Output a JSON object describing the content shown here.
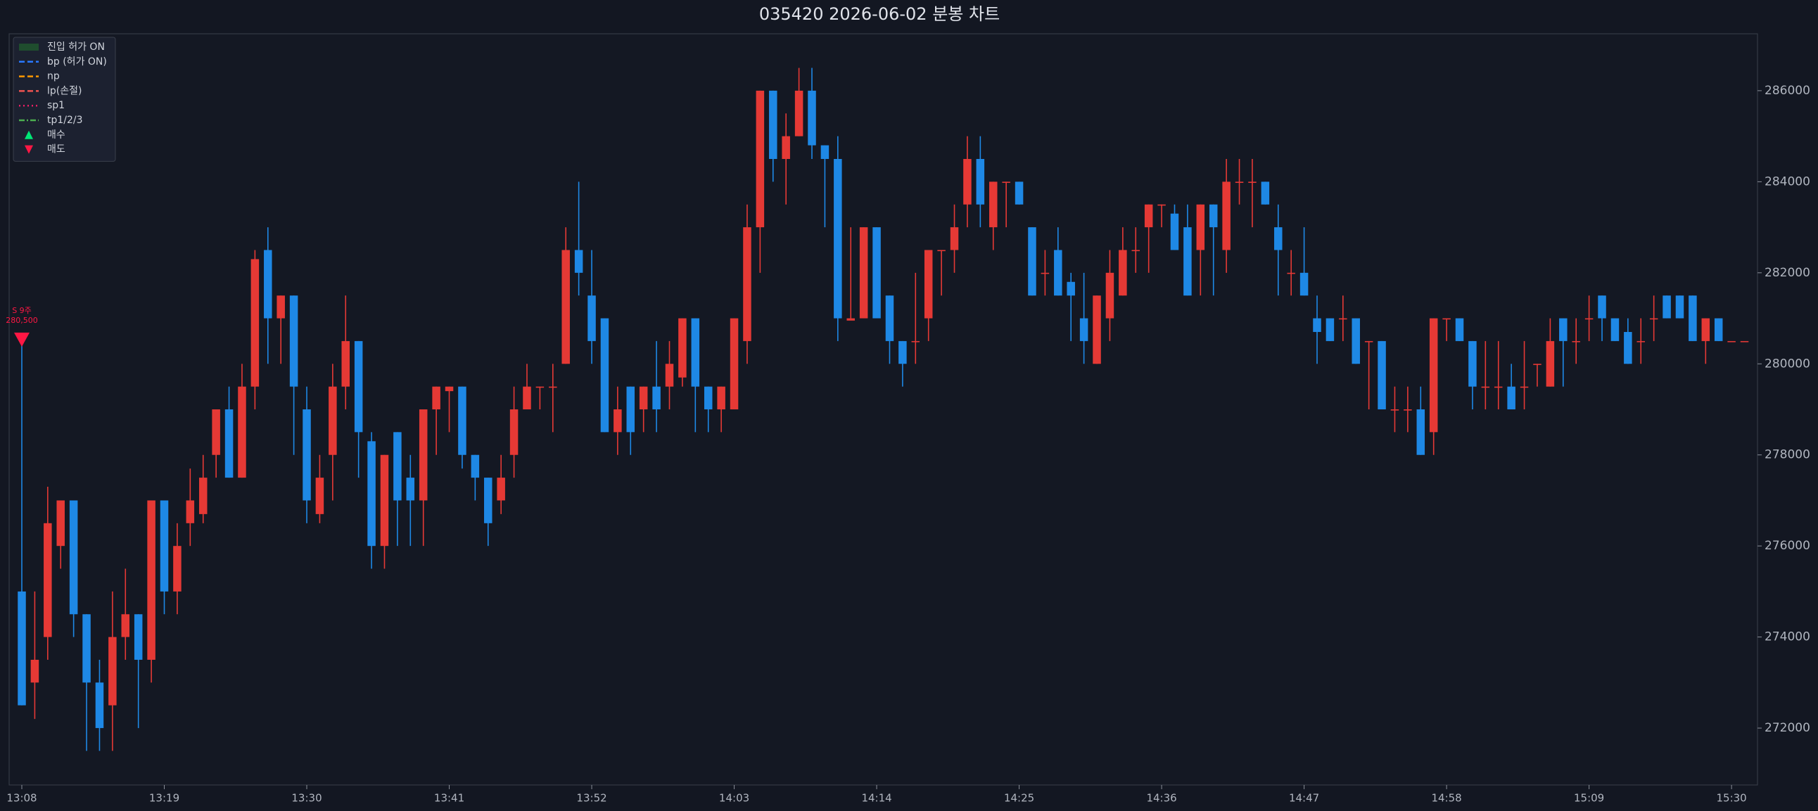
{
  "chart_data": {
    "type": "candlestick",
    "title": "035420  2026-06-02  분봉 차트",
    "categories": [
      "13:08",
      null,
      null,
      null,
      null,
      null,
      null,
      null,
      null,
      null,
      null,
      "13:19",
      null,
      null,
      null,
      null,
      null,
      null,
      null,
      null,
      null,
      null,
      "13:30",
      null,
      null,
      null,
      null,
      null,
      null,
      null,
      null,
      null,
      null,
      "13:41",
      null,
      null,
      null,
      null,
      null,
      null,
      null,
      null,
      null,
      null,
      "13:52",
      null,
      null,
      null,
      null,
      null,
      null,
      null,
      null,
      null,
      null,
      "14:03",
      null,
      null,
      null,
      null,
      null,
      null,
      null,
      null,
      null,
      null,
      "14:14",
      null,
      null,
      null,
      null,
      null,
      null,
      null,
      null,
      null,
      null,
      "14:25",
      null,
      null,
      null,
      null,
      null,
      null,
      null,
      null,
      null,
      null,
      "14:36",
      null,
      null,
      null,
      null,
      null,
      null,
      null,
      null,
      null,
      null,
      "14:47",
      null,
      null,
      null,
      null,
      null,
      null,
      null,
      null,
      null,
      null,
      "14:58",
      null,
      null,
      null,
      null,
      null,
      null,
      null,
      null,
      null,
      null,
      "15:09",
      null,
      null,
      null,
      null,
      null,
      null,
      null,
      null,
      null,
      null,
      "15:30",
      null
    ],
    "open": [
      275000,
      273000,
      274000,
      276000,
      277000,
      274500,
      273000,
      272500,
      274000,
      274500,
      273500,
      277000,
      275000,
      276500,
      276700,
      278000,
      279000,
      277500,
      279500,
      282500,
      281000,
      281500,
      279000,
      276700,
      278000,
      279500,
      280500,
      278300,
      276000,
      278500,
      277500,
      277000,
      279000,
      279400,
      279500,
      278000,
      277500,
      277000,
      278000,
      279000,
      279500,
      279500,
      280000,
      282500,
      281500,
      281000,
      278500,
      279500,
      279000,
      279500,
      279500,
      279700,
      281000,
      279500,
      279000,
      279000,
      280500,
      283000,
      286000,
      284500,
      285000,
      286000,
      284800,
      284500,
      280950,
      281000,
      283000,
      281500,
      280500,
      280500,
      281000,
      282500,
      282500,
      283500,
      284500,
      283000,
      284000,
      284000,
      283000,
      282000,
      282500,
      281800,
      281000,
      280000,
      281000,
      281500,
      282500,
      283000,
      283500,
      283300,
      283000,
      282500,
      283500,
      282500,
      284000,
      284000,
      284000,
      283000,
      282000,
      282000,
      281000,
      281000,
      281000,
      281000,
      280500,
      280500,
      279000,
      279000,
      279000,
      278500,
      281000,
      281000,
      280500,
      279500,
      279500,
      279500,
      279500,
      280000,
      279500,
      281000,
      280500,
      281000,
      281500,
      281000,
      280700,
      280500,
      281000,
      281500,
      281500,
      281500,
      280500,
      281000,
      280500,
      280500
    ],
    "high": [
      280500,
      275000,
      277300,
      277000,
      277000,
      274500,
      273500,
      275000,
      275500,
      274500,
      277000,
      277000,
      276500,
      277700,
      278000,
      279000,
      279500,
      280000,
      282500,
      283000,
      281500,
      281500,
      279500,
      278000,
      280000,
      281500,
      280500,
      278500,
      278000,
      278500,
      278000,
      279000,
      279500,
      279500,
      279500,
      278000,
      277500,
      278000,
      279500,
      280000,
      279500,
      280000,
      283000,
      284000,
      282500,
      281000,
      279500,
      279500,
      279500,
      280500,
      280500,
      281000,
      281000,
      279500,
      279500,
      281000,
      283500,
      286000,
      286000,
      285500,
      286500,
      286500,
      284800,
      285000,
      283000,
      283000,
      283000,
      281500,
      280500,
      282000,
      282500,
      282500,
      283500,
      285000,
      285000,
      284000,
      284000,
      284000,
      283000,
      282500,
      283000,
      282000,
      282000,
      281500,
      282500,
      283000,
      283000,
      283500,
      283500,
      283500,
      283500,
      283500,
      283500,
      284500,
      284500,
      284500,
      284000,
      283500,
      282500,
      283000,
      281500,
      281000,
      281500,
      281000,
      280500,
      280500,
      279500,
      279500,
      279500,
      281000,
      281000,
      281000,
      280500,
      280500,
      280500,
      280000,
      280500,
      280000,
      281000,
      281000,
      281000,
      281500,
      281500,
      281000,
      281000,
      281000,
      281500,
      281500,
      281500,
      281500,
      281000,
      281000,
      280500,
      280500
    ],
    "low": [
      272500,
      272200,
      273500,
      275500,
      274000,
      271500,
      271500,
      271500,
      273500,
      272000,
      273000,
      274500,
      274500,
      276000,
      276500,
      277500,
      277500,
      277500,
      279000,
      280000,
      280000,
      278000,
      276500,
      276500,
      277000,
      279000,
      277500,
      275500,
      275500,
      276000,
      276000,
      276000,
      278000,
      278500,
      277700,
      277000,
      276000,
      276700,
      277500,
      279000,
      279000,
      278500,
      280000,
      281500,
      280000,
      278500,
      278000,
      278000,
      278500,
      278500,
      279000,
      279500,
      278500,
      278500,
      278500,
      279000,
      280000,
      282000,
      284000,
      283500,
      285000,
      284500,
      283000,
      280500,
      281000,
      281000,
      281000,
      280000,
      279500,
      280000,
      280500,
      281500,
      282000,
      283000,
      283000,
      282500,
      283000,
      283500,
      281500,
      281500,
      281500,
      280500,
      280000,
      280000,
      280500,
      281500,
      282000,
      282000,
      283000,
      282500,
      281500,
      281500,
      281500,
      282000,
      283500,
      283000,
      283500,
      281500,
      281500,
      281500,
      280000,
      280500,
      280500,
      280000,
      279000,
      279000,
      278500,
      278500,
      278000,
      278000,
      280500,
      280500,
      279000,
      279000,
      279000,
      279000,
      279000,
      279500,
      279500,
      279500,
      280000,
      280500,
      280500,
      280500,
      280000,
      280000,
      280500,
      281000,
      281000,
      280500,
      280000,
      280500,
      280500,
      280500
    ],
    "close": [
      272500,
      273500,
      276500,
      277000,
      274500,
      273000,
      272000,
      274000,
      274500,
      273500,
      277000,
      275000,
      276000,
      277000,
      277500,
      279000,
      277500,
      279500,
      282300,
      281000,
      281500,
      279500,
      277000,
      277500,
      279500,
      280500,
      278500,
      276000,
      278000,
      277000,
      277000,
      279000,
      279500,
      279500,
      278000,
      277500,
      276500,
      277500,
      279000,
      279500,
      279500,
      279500,
      282500,
      282000,
      280500,
      278500,
      279000,
      278500,
      279500,
      279000,
      280000,
      281000,
      279500,
      279000,
      279500,
      281000,
      283000,
      286000,
      284500,
      285000,
      286000,
      284800,
      284500,
      281000,
      281000,
      283000,
      281000,
      280500,
      280000,
      280500,
      282500,
      282500,
      283000,
      284500,
      283500,
      284000,
      284000,
      283500,
      281500,
      282000,
      281500,
      281500,
      280500,
      281500,
      282000,
      282500,
      282500,
      283500,
      283500,
      282500,
      281500,
      283500,
      283000,
      284000,
      284000,
      284000,
      283500,
      282500,
      282000,
      281500,
      280700,
      280500,
      281000,
      280000,
      280500,
      279000,
      279000,
      279000,
      278000,
      281000,
      281000,
      280500,
      279500,
      279500,
      279500,
      279000,
      279500,
      280000,
      280500,
      280500,
      280500,
      281000,
      281000,
      280500,
      280000,
      280500,
      281000,
      281000,
      281000,
      280500,
      281000,
      280500,
      280500,
      280500
    ],
    "up_color": "#e53935",
    "down_color": "#1e88e5",
    "ylim": [
      270750,
      287250
    ],
    "yticks": [
      272000,
      274000,
      276000,
      278000,
      280000,
      282000,
      284000,
      286000
    ],
    "signals": [
      {
        "type": "sell",
        "x": "13:08",
        "value": 280500,
        "label": "S 9주",
        "value_label": "280,500",
        "color": "#ff1744"
      }
    ],
    "legend": {
      "position": "upper left",
      "entries": [
        {
          "name": "진입 허가 ON",
          "style": "patch",
          "color": "#1f4d2e"
        },
        {
          "name": "bp (허가 ON)",
          "style": "dashed",
          "color": "#2979ff"
        },
        {
          "name": "np",
          "style": "dashed",
          "color": "#ff9800"
        },
        {
          "name": "lp(손절)",
          "style": "dashed",
          "color": "#ef5350"
        },
        {
          "name": "sp1",
          "style": "dotted",
          "color": "#e91e63"
        },
        {
          "name": "tp1/2/3",
          "style": "dashdot",
          "color": "#4caf50"
        },
        {
          "name": "매수",
          "style": "triangle-up",
          "color": "#00e676"
        },
        {
          "name": "매도",
          "style": "triangle-down",
          "color": "#ff1744"
        }
      ]
    }
  }
}
